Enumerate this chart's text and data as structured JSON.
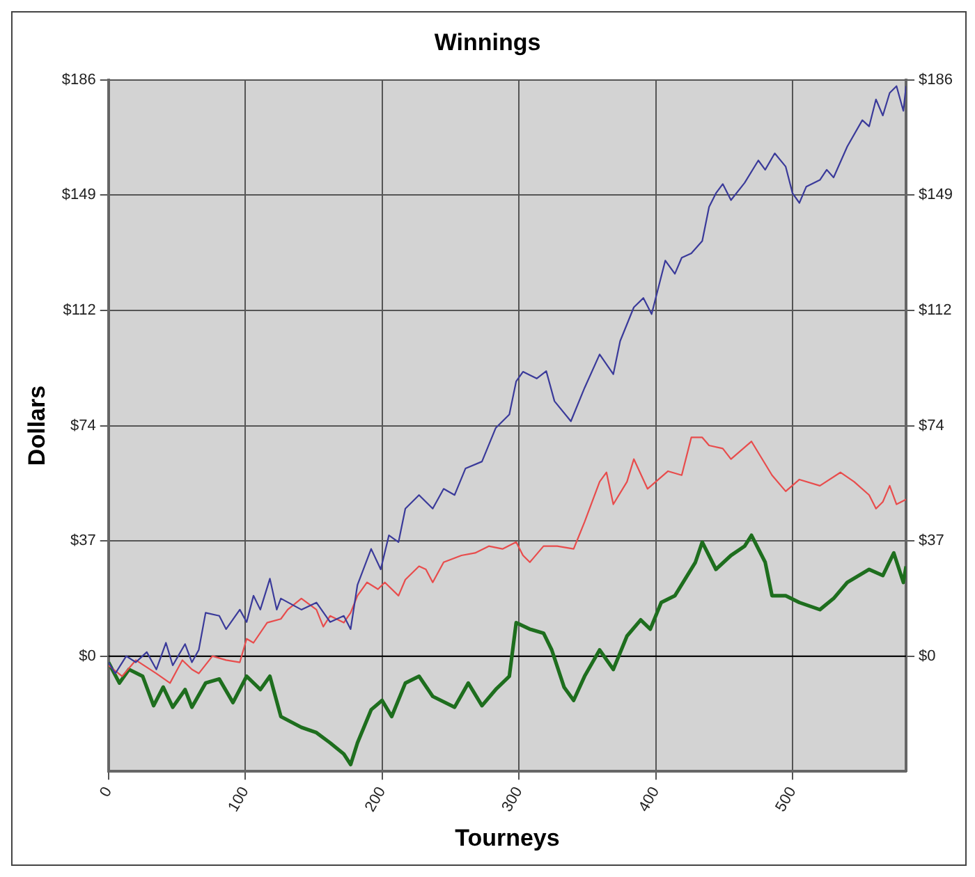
{
  "chart_data": {
    "type": "line",
    "title": "Winnings",
    "xlabel": "Tourneys",
    "ylabel": "Dollars",
    "xlim": [
      0,
      583
    ],
    "xticks": [
      0,
      100,
      200,
      300,
      400,
      500
    ],
    "ylim": [
      -37.2,
      186
    ],
    "yticks": [
      {
        "value": 0,
        "label": "$0"
      },
      {
        "value": 37.2,
        "label": "$37"
      },
      {
        "value": 74.4,
        "label": "$74"
      },
      {
        "value": 111.6,
        "label": "$112"
      },
      {
        "value": 148.8,
        "label": "$149"
      },
      {
        "value": 186,
        "label": "$186"
      }
    ],
    "y2lim": [
      -37.2,
      186
    ],
    "y2ticks": [
      {
        "value": 0,
        "label": "$0"
      },
      {
        "value": 37.2,
        "label": "$37"
      },
      {
        "value": 74.4,
        "label": "$74"
      },
      {
        "value": 111.6,
        "label": "$112"
      },
      {
        "value": 148.8,
        "label": "$149"
      },
      {
        "value": 186,
        "label": "$186"
      }
    ],
    "grid": true,
    "legend": false,
    "marker": "none",
    "line_style": "solid",
    "ref_lines": [
      {
        "axis": "y",
        "value": 0,
        "color": "#000000"
      }
    ],
    "series": [
      {
        "color": "#3a3a9a",
        "x": [
          0,
          5,
          13,
          20,
          28,
          35,
          42,
          47,
          56,
          61,
          66,
          71,
          81,
          86,
          96,
          101,
          106,
          111,
          118,
          123,
          126,
          141,
          152,
          162,
          172,
          177,
          182,
          192,
          199,
          205,
          212,
          217,
          227,
          237,
          245,
          253,
          261,
          273,
          283,
          293,
          298,
          303,
          313,
          320,
          326,
          338,
          348,
          359,
          369,
          374,
          384,
          391,
          397,
          407,
          414,
          419,
          426,
          434,
          439,
          444,
          449,
          455,
          465,
          475,
          480,
          487,
          495,
          500,
          505,
          510,
          520,
          525,
          530,
          540,
          551,
          556,
          561,
          566,
          571,
          576,
          581,
          583
        ],
        "values": [
          -2,
          -5.6,
          0,
          -2,
          1.3,
          -4.3,
          4.3,
          -3,
          3.9,
          -2,
          2,
          14,
          13,
          8.7,
          15,
          11,
          19.5,
          15,
          25,
          15,
          18.6,
          15,
          17.3,
          11,
          13,
          8.7,
          23,
          34.6,
          28,
          39,
          36.8,
          47.6,
          52,
          47.6,
          54,
          52,
          60.6,
          62.8,
          73.6,
          78,
          88.7,
          91.8,
          89.6,
          92,
          82.3,
          75.8,
          86.6,
          97.4,
          91,
          101.7,
          112.6,
          115.6,
          110.4,
          127.7,
          123.4,
          128.6,
          130,
          134,
          145,
          149.4,
          152.4,
          147.2,
          152.8,
          160,
          157,
          162.3,
          158,
          149.4,
          146.3,
          151.5,
          153.7,
          157,
          154.5,
          164.5,
          173,
          171,
          179.7,
          174.5,
          181.8,
          184,
          176,
          184
        ]
      },
      {
        "color": "#e84c4c",
        "x": [
          0,
          10,
          20,
          35,
          45,
          54,
          61,
          66,
          76,
          86,
          96,
          101,
          106,
          116,
          126,
          131,
          141,
          152,
          157,
          162,
          172,
          177,
          182,
          189,
          197,
          202,
          212,
          217,
          227,
          232,
          237,
          245,
          258,
          268,
          278,
          288,
          298,
          303,
          308,
          318,
          328,
          340,
          348,
          359,
          364,
          369,
          379,
          384,
          394,
          409,
          419,
          426,
          434,
          439,
          449,
          455,
          470,
          485,
          495,
          505,
          520,
          535,
          545,
          556,
          561,
          566,
          571,
          576,
          583
        ],
        "values": [
          -3,
          -6.5,
          -1.3,
          -5.6,
          -8.7,
          -1.3,
          -4.3,
          -5.6,
          0,
          -1.3,
          -2,
          5.6,
          4.3,
          10.8,
          12,
          15,
          18.6,
          15,
          9.5,
          13,
          10.8,
          14,
          19.5,
          23.8,
          21.6,
          23.8,
          19.5,
          24.7,
          29,
          28,
          23.8,
          30.3,
          32.5,
          33.3,
          35.5,
          34.6,
          36.8,
          32.5,
          30.3,
          35.5,
          35.5,
          34.6,
          43.3,
          56.3,
          59.3,
          49,
          56.3,
          63.6,
          54,
          59.7,
          58.4,
          70.6,
          70.6,
          68,
          67,
          63.6,
          69.3,
          58.4,
          53.2,
          57,
          55,
          59.3,
          56.3,
          52,
          47.6,
          49.8,
          55,
          49,
          50.6
        ]
      },
      {
        "color": "#1e6e1e",
        "x": [
          0,
          8,
          15,
          25,
          33,
          40,
          47,
          56,
          61,
          71,
          81,
          91,
          101,
          111,
          118,
          126,
          141,
          152,
          162,
          172,
          177,
          182,
          192,
          200,
          207,
          217,
          227,
          237,
          253,
          263,
          273,
          283,
          293,
          298,
          308,
          318,
          324,
          333,
          340,
          348,
          359,
          369,
          379,
          389,
          396,
          404,
          414,
          429,
          434,
          444,
          455,
          465,
          470,
          480,
          485,
          495,
          505,
          520,
          530,
          540,
          556,
          566,
          574,
          581,
          583
        ],
        "values": [
          -2,
          -8.7,
          -4.3,
          -6.5,
          -16,
          -10,
          -16.5,
          -10.8,
          -16.5,
          -8.7,
          -7.4,
          -15,
          -6.5,
          -10.8,
          -6.5,
          -19.5,
          -23,
          -24.7,
          -28,
          -31.6,
          -35,
          -28,
          -17.3,
          -14.3,
          -19.5,
          -8.7,
          -6.5,
          -13,
          -16.5,
          -8.7,
          -16,
          -10.8,
          -6.5,
          10.8,
          8.7,
          7.4,
          2,
          -10,
          -14.3,
          -6.5,
          2,
          -4.3,
          6.5,
          11.7,
          8.7,
          17.3,
          19.5,
          30.3,
          36.8,
          28,
          32.5,
          35.5,
          39,
          30.3,
          19.5,
          19.5,
          17.3,
          15,
          18.6,
          23.8,
          28,
          26,
          33.3,
          23.8,
          29
        ]
      }
    ]
  }
}
